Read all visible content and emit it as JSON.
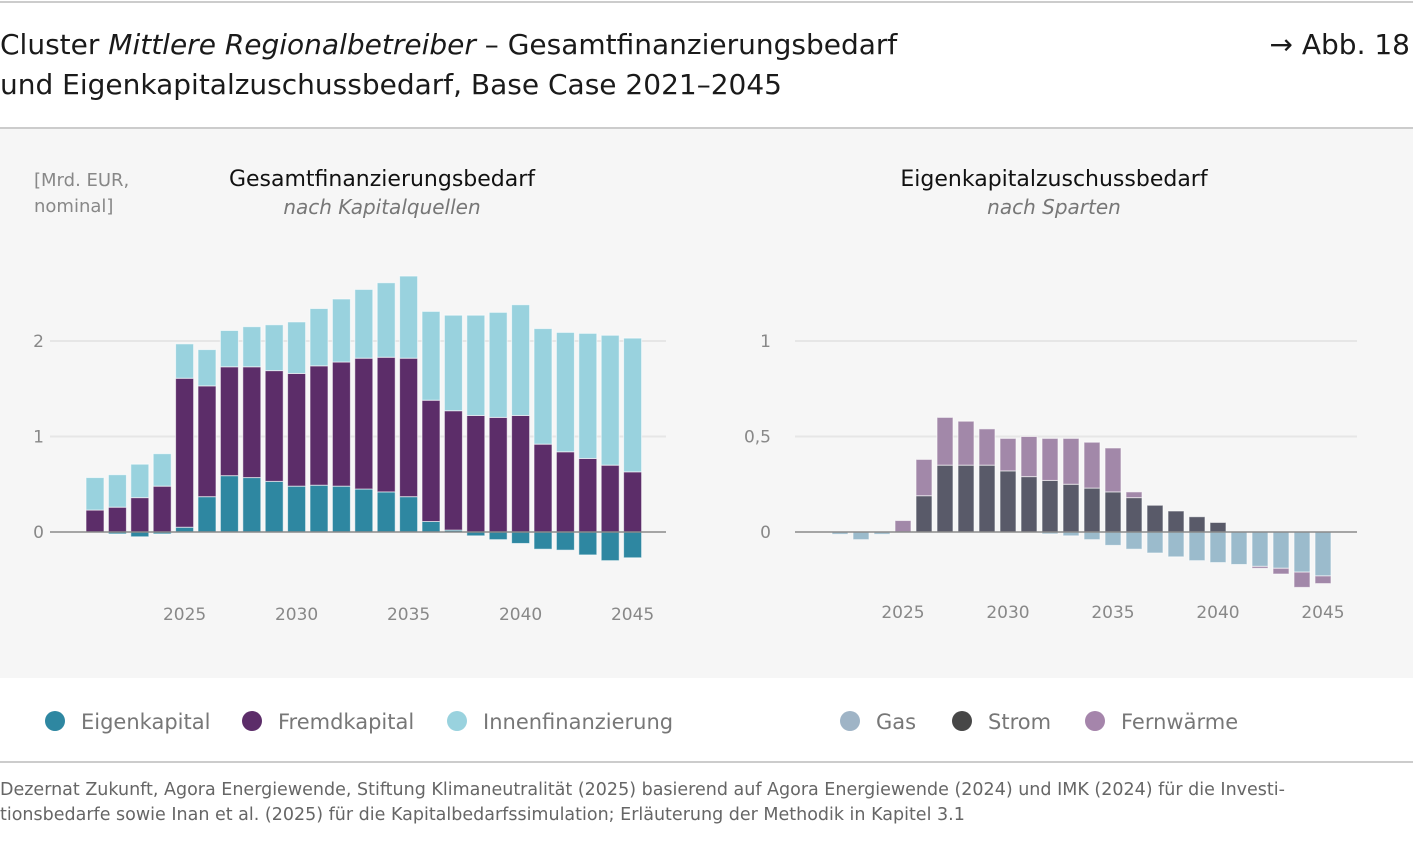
{
  "header": {
    "title_line1_a": "Cluster ",
    "title_line1_italic": "Mittlere Regionalbetreiber",
    "title_line1_b": " – Gesamtfinanzierungsbedarf",
    "title_line2": "und Eigenkapitalzuschussbedarf, Base Case 2021–2045",
    "figure_ref": "→ Abb. 18"
  },
  "unit_label_1": "[Mrd. EUR,",
  "unit_label_2": "nominal]",
  "chart_data": [
    {
      "type": "bar",
      "stacked": true,
      "title": "Gesamtfinanzierungsbedarf",
      "subtitle": "nach Kapitalquellen",
      "ylabel": "[Mrd. EUR, nominal]",
      "ylim": [
        -0.4,
        2.9
      ],
      "yticks": [
        {
          "v": 0,
          "label": "0"
        },
        {
          "v": 1,
          "label": "1"
        },
        {
          "v": 2,
          "label": "2"
        }
      ],
      "xticks": [
        2025,
        2030,
        2035,
        2040,
        2045
      ],
      "grid": true,
      "legend": "bottom",
      "x": [
        2021,
        2022,
        2023,
        2024,
        2025,
        2026,
        2027,
        2028,
        2029,
        2030,
        2031,
        2032,
        2033,
        2034,
        2035,
        2036,
        2037,
        2038,
        2039,
        2040,
        2041,
        2042,
        2043,
        2044,
        2045
      ],
      "series": [
        {
          "name": "Eigenkapital",
          "color": "#2e87a1",
          "values": [
            0,
            -0.02,
            -0.05,
            -0.02,
            0.05,
            0.37,
            0.59,
            0.57,
            0.53,
            0.48,
            0.49,
            0.48,
            0.45,
            0.42,
            0.37,
            0.11,
            0.02,
            -0.04,
            -0.08,
            -0.12,
            -0.18,
            -0.19,
            -0.24,
            -0.3,
            -0.27
          ]
        },
        {
          "name": "Fremdkapital",
          "color": "#5c2d69",
          "values": [
            0.23,
            0.26,
            0.36,
            0.48,
            1.56,
            1.16,
            1.14,
            1.16,
            1.16,
            1.18,
            1.25,
            1.3,
            1.37,
            1.41,
            1.45,
            1.27,
            1.25,
            1.22,
            1.2,
            1.22,
            0.92,
            0.84,
            0.77,
            0.7,
            0.63
          ]
        },
        {
          "name": "Innenfinanzierung",
          "color": "#99d2de",
          "values": [
            0.34,
            0.34,
            0.35,
            0.34,
            0.36,
            0.38,
            0.38,
            0.42,
            0.48,
            0.54,
            0.6,
            0.66,
            0.72,
            0.78,
            0.86,
            0.93,
            1.0,
            1.05,
            1.1,
            1.16,
            1.21,
            1.25,
            1.31,
            1.36,
            1.4
          ]
        }
      ]
    },
    {
      "type": "bar",
      "stacked": true,
      "title": "Eigenkapitalzuschussbedarf",
      "subtitle": "nach Sparten",
      "ylim": [
        -0.35,
        1.2
      ],
      "yticks": [
        {
          "v": 0,
          "label": "0"
        },
        {
          "v": 0.5,
          "label": "0,5"
        },
        {
          "v": 1,
          "label": "1"
        }
      ],
      "xticks": [
        2025,
        2030,
        2035,
        2040,
        2045
      ],
      "grid": true,
      "legend": "bottom",
      "x": [
        2021,
        2022,
        2023,
        2024,
        2025,
        2026,
        2027,
        2028,
        2029,
        2030,
        2031,
        2032,
        2033,
        2034,
        2035,
        2036,
        2037,
        2038,
        2039,
        2040,
        2041,
        2042,
        2043,
        2044,
        2045
      ],
      "series": [
        {
          "name": "Gas",
          "color": "#9bbbcc",
          "values": [
            0,
            -0.012,
            -0.04,
            -0.012,
            0,
            0,
            0,
            0,
            0,
            0,
            0,
            -0.01,
            -0.02,
            -0.04,
            -0.07,
            -0.09,
            -0.11,
            -0.13,
            -0.15,
            -0.16,
            -0.17,
            -0.18,
            -0.19,
            -0.21,
            -0.23
          ]
        },
        {
          "name": "Strom",
          "color": "#595a69",
          "values": [
            0,
            0,
            0,
            0,
            0,
            0.19,
            0.35,
            0.35,
            0.35,
            0.32,
            0.29,
            0.27,
            0.25,
            0.23,
            0.21,
            0.18,
            0.14,
            0.11,
            0.08,
            0.05,
            0,
            0,
            0,
            0,
            0
          ]
        },
        {
          "name": "Fernwärme",
          "color": "#a288a9",
          "values": [
            0,
            0,
            0,
            0,
            0.06,
            0.19,
            0.25,
            0.23,
            0.19,
            0.17,
            0.21,
            0.22,
            0.24,
            0.24,
            0.23,
            0.03,
            0,
            0,
            0,
            0,
            0,
            -0.01,
            -0.03,
            -0.08,
            -0.04
          ]
        }
      ]
    }
  ],
  "legend_colors": {
    "Gas": "#9fb4c6",
    "Strom": "#474747",
    "Fernwärme": "#a585ab"
  },
  "source_line1": "Dezernat Zukunft, Agora Energiewende, Stiftung Klimaneutralität (2025) basierend auf Agora Energiewende (2024) und IMK (2024) für die Investi-",
  "source_line2": "tionsbedarfe sowie Inan et al. (2025) für die Kapitalbedarfssimulation; Erläuterung der Methodik in Kapitel 3.1"
}
